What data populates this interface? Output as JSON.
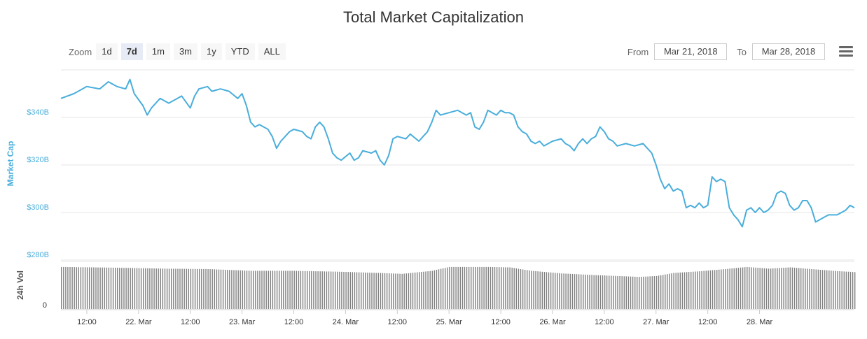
{
  "title": "Total Market Capitalization",
  "zoom": {
    "label": "Zoom",
    "buttons": [
      "1d",
      "7d",
      "1m",
      "3m",
      "1y",
      "YTD",
      "ALL"
    ],
    "active": "7d"
  },
  "range": {
    "from_label": "From",
    "from_value": "Mar 21, 2018",
    "to_label": "To",
    "to_value": "Mar 28, 2018"
  },
  "menu_icon": "hamburger-menu-icon",
  "colors": {
    "line": "#4aaedb",
    "volume": "#808080",
    "grid": "#e6e6e6"
  },
  "chart_data": {
    "type": "line",
    "title": "Total Market Capitalization",
    "ylabel": "Market Cap",
    "y_tick_labels": [
      "$280B",
      "$300B",
      "$320B",
      "$340B"
    ],
    "y_ticks": [
      280,
      300,
      320,
      340
    ],
    "ylim": [
      280,
      360
    ],
    "x_tick_labels": [
      "12:00",
      "22. Mar",
      "12:00",
      "23. Mar",
      "12:00",
      "24. Mar",
      "12:00",
      "25. Mar",
      "12:00",
      "26. Mar",
      "12:00",
      "27. Mar",
      "12:00",
      "28. Mar"
    ],
    "x_range_hours": [
      6,
      190
    ],
    "grid": true,
    "series": [
      {
        "values": [
          [
            6,
            348
          ],
          [
            9,
            350
          ],
          [
            12,
            353
          ],
          [
            15,
            352
          ],
          [
            17,
            355
          ],
          [
            19,
            353
          ],
          [
            21,
            352
          ],
          [
            22,
            356
          ],
          [
            23,
            350
          ],
          [
            25,
            345
          ],
          [
            26,
            341
          ],
          [
            27,
            344
          ],
          [
            29,
            348
          ],
          [
            31,
            346
          ],
          [
            32,
            347
          ],
          [
            34,
            349
          ],
          [
            36,
            344
          ],
          [
            37,
            349
          ],
          [
            38,
            352
          ],
          [
            40,
            353
          ],
          [
            41,
            351
          ],
          [
            43,
            352
          ],
          [
            45,
            351
          ],
          [
            47,
            348
          ],
          [
            48,
            350
          ],
          [
            49,
            345
          ],
          [
            50,
            338
          ],
          [
            51,
            336
          ],
          [
            52,
            337
          ],
          [
            54,
            335
          ],
          [
            55,
            332
          ],
          [
            56,
            327
          ],
          [
            57,
            330
          ],
          [
            58,
            332
          ],
          [
            59,
            334
          ],
          [
            60,
            335
          ],
          [
            62,
            334
          ],
          [
            63,
            332
          ],
          [
            64,
            331
          ],
          [
            65,
            336
          ],
          [
            66,
            338
          ],
          [
            67,
            336
          ],
          [
            68,
            331
          ],
          [
            69,
            325
          ],
          [
            70,
            323
          ],
          [
            71,
            322
          ],
          [
            73,
            325
          ],
          [
            74,
            322
          ],
          [
            75,
            323
          ],
          [
            76,
            326
          ],
          [
            78,
            325
          ],
          [
            79,
            326
          ],
          [
            80,
            322
          ],
          [
            81,
            320
          ],
          [
            82,
            324
          ],
          [
            83,
            331
          ],
          [
            84,
            332
          ],
          [
            86,
            331
          ],
          [
            87,
            333
          ],
          [
            89,
            330
          ],
          [
            90,
            332
          ],
          [
            91,
            334
          ],
          [
            92,
            338
          ],
          [
            93,
            343
          ],
          [
            94,
            341
          ],
          [
            96,
            342
          ],
          [
            98,
            343
          ],
          [
            99,
            342
          ],
          [
            100,
            341
          ],
          [
            101,
            342
          ],
          [
            102,
            336
          ],
          [
            103,
            335
          ],
          [
            104,
            338
          ],
          [
            105,
            343
          ],
          [
            106,
            342
          ],
          [
            107,
            341
          ],
          [
            108,
            343
          ],
          [
            109,
            342
          ],
          [
            110,
            342
          ],
          [
            111,
            341
          ],
          [
            112,
            336
          ],
          [
            113,
            334
          ],
          [
            114,
            333
          ],
          [
            115,
            330
          ],
          [
            116,
            329
          ],
          [
            117,
            330
          ],
          [
            118,
            328
          ],
          [
            120,
            330
          ],
          [
            122,
            331
          ],
          [
            123,
            329
          ],
          [
            124,
            328
          ],
          [
            125,
            326
          ],
          [
            126,
            329
          ],
          [
            127,
            331
          ],
          [
            128,
            329
          ],
          [
            129,
            331
          ],
          [
            130,
            332
          ],
          [
            131,
            336
          ],
          [
            132,
            334
          ],
          [
            133,
            331
          ],
          [
            134,
            330
          ],
          [
            135,
            328
          ],
          [
            137,
            329
          ],
          [
            139,
            328
          ],
          [
            141,
            329
          ],
          [
            142,
            327
          ],
          [
            143,
            325
          ],
          [
            144,
            320
          ],
          [
            145,
            314
          ],
          [
            146,
            310
          ],
          [
            147,
            312
          ],
          [
            148,
            309
          ],
          [
            149,
            310
          ],
          [
            150,
            309
          ],
          [
            151,
            302
          ],
          [
            152,
            303
          ],
          [
            153,
            302
          ],
          [
            154,
            304
          ],
          [
            155,
            302
          ],
          [
            156,
            303
          ],
          [
            157,
            315
          ],
          [
            158,
            313
          ],
          [
            159,
            314
          ],
          [
            160,
            313
          ],
          [
            161,
            302
          ],
          [
            162,
            299
          ],
          [
            163,
            297
          ],
          [
            164,
            294
          ],
          [
            165,
            301
          ],
          [
            166,
            302
          ],
          [
            167,
            300
          ],
          [
            168,
            302
          ],
          [
            169,
            300
          ],
          [
            170,
            301
          ],
          [
            171,
            303
          ],
          [
            172,
            308
          ],
          [
            173,
            309
          ],
          [
            174,
            308
          ],
          [
            175,
            303
          ],
          [
            176,
            301
          ],
          [
            177,
            302
          ],
          [
            178,
            305
          ],
          [
            179,
            305
          ],
          [
            180,
            302
          ],
          [
            181,
            296
          ],
          [
            182,
            297
          ],
          [
            183,
            298
          ],
          [
            184,
            299
          ],
          [
            186,
            299
          ],
          [
            187,
            300
          ],
          [
            188,
            301
          ],
          [
            189,
            303
          ],
          [
            190,
            302
          ]
        ]
      }
    ],
    "volume": {
      "ylabel": "24h Vol",
      "tick_label": "0",
      "values": [
        [
          6,
          0.97
        ],
        [
          20,
          0.95
        ],
        [
          30,
          0.93
        ],
        [
          40,
          0.92
        ],
        [
          50,
          0.88
        ],
        [
          60,
          0.88
        ],
        [
          70,
          0.86
        ],
        [
          80,
          0.83
        ],
        [
          85,
          0.81
        ],
        [
          92,
          0.88
        ],
        [
          96,
          0.97
        ],
        [
          105,
          0.97
        ],
        [
          110,
          0.96
        ],
        [
          115,
          0.88
        ],
        [
          122,
          0.82
        ],
        [
          130,
          0.78
        ],
        [
          140,
          0.74
        ],
        [
          144,
          0.76
        ],
        [
          148,
          0.83
        ],
        [
          154,
          0.87
        ],
        [
          160,
          0.92
        ],
        [
          165,
          0.97
        ],
        [
          170,
          0.93
        ],
        [
          175,
          0.96
        ],
        [
          180,
          0.92
        ],
        [
          185,
          0.88
        ],
        [
          190,
          0.85
        ]
      ]
    }
  }
}
